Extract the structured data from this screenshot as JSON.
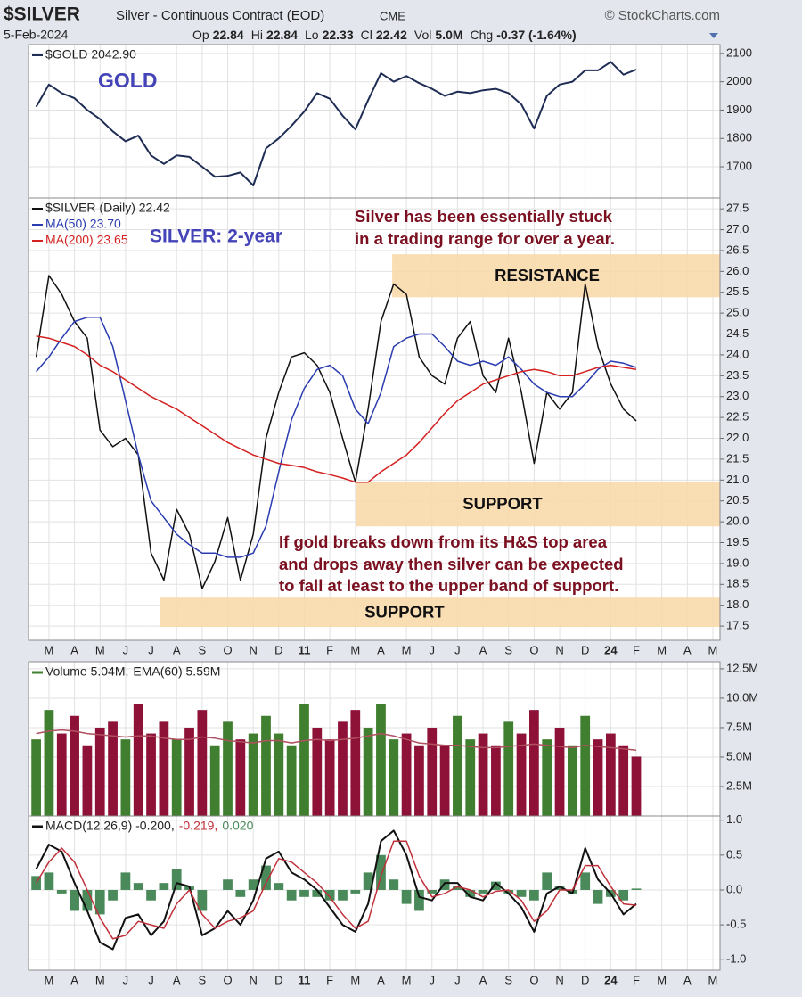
{
  "header": {
    "symbol": "$SILVER",
    "description": "Silver - Continuous Contract (EOD)",
    "exchange": "CME",
    "source": "© StockCharts.com",
    "date": "5-Feb-2024",
    "stats": [
      {
        "label": "Op",
        "value": "22.84"
      },
      {
        "label": "Hi",
        "value": "22.84"
      },
      {
        "label": "Lo",
        "value": "22.33"
      },
      {
        "label": "Cl",
        "value": "22.42"
      },
      {
        "label": "Vol",
        "value": "5.0M"
      },
      {
        "label": "Chg",
        "value": "-0.37 (-1.64%)"
      }
    ]
  },
  "chart_data": [
    {
      "type": "line",
      "annotations": [
        "GOLD"
      ],
      "xlim": [
        0.2,
        27.28
      ],
      "ylim": [
        1590,
        2131
      ],
      "yticks": [
        1700,
        1800,
        1900,
        2000,
        2100
      ],
      "grid": true,
      "x": [
        0.5,
        1,
        1.5,
        2,
        2.5,
        3,
        3.5,
        4,
        4.5,
        5,
        5.5,
        6,
        6.5,
        7,
        7.5,
        8,
        8.5,
        9,
        9.5,
        10,
        10.5,
        11,
        11.5,
        12,
        12.5,
        13,
        13.5,
        14,
        14.5,
        15,
        15.5,
        16,
        16.5,
        17,
        17.5,
        18,
        18.5,
        19,
        19.5,
        20,
        20.5,
        21,
        21.5,
        22,
        22.5,
        23,
        23.5,
        24
      ],
      "series": [
        {
          "name": "$GOLD 2042.90",
          "color": "#1f2d55",
          "values": [
            1911,
            1990,
            1960,
            1942,
            1900,
            1868,
            1825,
            1790,
            1810,
            1740,
            1710,
            1740,
            1735,
            1700,
            1665,
            1668,
            1680,
            1634,
            1765,
            1800,
            1845,
            1895,
            1960,
            1940,
            1880,
            1832,
            1935,
            2030,
            2000,
            2020,
            1995,
            1975,
            1950,
            1965,
            1960,
            1970,
            1975,
            1960,
            1920,
            1835,
            1950,
            1990,
            2000,
            2040,
            2040,
            2070,
            2025,
            2042.9
          ]
        }
      ]
    },
    {
      "type": "line",
      "annotations": [
        "SILVER: 2-year",
        "Silver has been essentially stuck",
        "in a trading range for over a year.",
        "If gold breaks down from its H&S top area",
        "and drops away then silver can be expected",
        "to fall at least to the upper band of support."
      ],
      "xlim": [
        0.2,
        27.28
      ],
      "ylim": [
        17.16,
        27.76
      ],
      "grid": true,
      "xticks": [
        {
          "value": 1,
          "label": "M"
        },
        {
          "value": 2,
          "label": "A"
        },
        {
          "value": 3,
          "label": "M"
        },
        {
          "value": 4,
          "label": "J"
        },
        {
          "value": 5,
          "label": "J"
        },
        {
          "value": 6,
          "label": "A"
        },
        {
          "value": 7,
          "label": "S"
        },
        {
          "value": 8,
          "label": "O"
        },
        {
          "value": 9,
          "label": "N"
        },
        {
          "value": 10,
          "label": "D"
        },
        11,
        {
          "value": 12,
          "label": "F"
        },
        {
          "value": 13,
          "label": "M"
        },
        {
          "value": 14,
          "label": "A"
        },
        {
          "value": 15,
          "label": "M"
        },
        {
          "value": 16,
          "label": "J"
        },
        {
          "value": 17,
          "label": "J"
        },
        {
          "value": 18,
          "label": "A"
        },
        {
          "value": 19,
          "label": "S"
        },
        {
          "value": 20,
          "label": "O"
        },
        {
          "value": 21,
          "label": "N"
        },
        {
          "value": 22,
          "label": "D"
        },
        {
          "value": 23,
          "label": "24"
        },
        {
          "value": 24,
          "label": "F"
        },
        {
          "value": 25,
          "label": "M"
        },
        {
          "value": 26,
          "label": "A"
        },
        {
          "value": 27,
          "label": "M"
        }
      ],
      "yticks": [
        17.5,
        {
          "value": 18,
          "label": "18.0"
        },
        18.5,
        {
          "value": 19,
          "label": "19.0"
        },
        19.5,
        {
          "value": 20,
          "label": "20.0"
        },
        20.5,
        {
          "value": 21,
          "label": "21.0"
        },
        21.5,
        {
          "value": 22,
          "label": "22.0"
        },
        22.5,
        {
          "value": 23,
          "label": "23.0"
        },
        23.5,
        {
          "value": 24,
          "label": "24.0"
        },
        24.5,
        {
          "value": 25,
          "label": "25.0"
        },
        25.5,
        {
          "value": 26,
          "label": "26.0"
        },
        26.5,
        {
          "value": 27,
          "label": "27.0"
        },
        27.5
      ],
      "zone_color": "#f8d9ab",
      "zones": [
        {
          "label": "RESISTANCE",
          "range": [
            25.38,
            26.41
          ],
          "from": 14.44
        },
        {
          "label": "SUPPORT",
          "range": [
            19.89,
            20.96
          ],
          "from": 13.04
        },
        {
          "label": "SUPPORT",
          "range": [
            17.48,
            18.18
          ],
          "from": 5.36
        }
      ],
      "x": [
        0.5,
        1,
        1.5,
        2,
        2.5,
        3,
        3.5,
        4,
        4.5,
        5,
        5.5,
        6,
        6.5,
        7,
        7.5,
        8,
        8.5,
        9,
        9.5,
        10,
        10.5,
        11,
        11.5,
        12,
        12.5,
        13,
        13.5,
        14,
        14.5,
        15,
        15.5,
        16,
        16.5,
        17,
        17.5,
        18,
        18.5,
        19,
        19.5,
        20,
        20.5,
        21,
        21.5,
        22,
        22.5,
        23,
        23.5,
        24
      ],
      "series": [
        {
          "name": "$SILVER (Daily) 22.42",
          "color": "#111111",
          "values": [
            23.95,
            25.9,
            25.45,
            24.8,
            24.4,
            22.2,
            21.8,
            22.0,
            21.6,
            19.25,
            18.6,
            20.3,
            19.7,
            18.4,
            19.05,
            20.1,
            18.6,
            19.7,
            22.0,
            23.1,
            23.95,
            24.05,
            23.75,
            23.1,
            22.0,
            20.95,
            22.7,
            24.8,
            25.7,
            25.45,
            23.95,
            23.5,
            23.3,
            24.4,
            24.8,
            23.5,
            23.1,
            24.4,
            23.1,
            21.4,
            23.1,
            22.7,
            23.1,
            25.7,
            24.2,
            23.3,
            22.7,
            22.42
          ]
        },
        {
          "name": "MA(50) 23.70",
          "color": "#2a3cb0",
          "values": [
            23.6,
            23.95,
            24.4,
            24.8,
            24.9,
            24.9,
            24.2,
            22.9,
            21.6,
            20.5,
            20.1,
            19.7,
            19.45,
            19.25,
            19.25,
            19.15,
            19.15,
            19.25,
            19.9,
            21.2,
            22.45,
            23.2,
            23.65,
            23.75,
            23.5,
            22.7,
            22.35,
            23.1,
            24.2,
            24.4,
            24.5,
            24.5,
            24.2,
            23.85,
            23.75,
            23.85,
            23.75,
            23.95,
            23.65,
            23.3,
            23.1,
            23.0,
            23.0,
            23.3,
            23.65,
            23.85,
            23.8,
            23.7
          ]
        },
        {
          "name": "MA(200) 23.65",
          "color": "#d42020",
          "values": [
            24.45,
            24.4,
            24.3,
            24.2,
            24.0,
            23.75,
            23.6,
            23.4,
            23.2,
            23.0,
            22.85,
            22.7,
            22.5,
            22.3,
            22.1,
            21.9,
            21.75,
            21.6,
            21.5,
            21.4,
            21.35,
            21.3,
            21.2,
            21.13,
            21.05,
            20.95,
            20.95,
            21.2,
            21.4,
            21.6,
            21.9,
            22.25,
            22.6,
            22.9,
            23.1,
            23.3,
            23.4,
            23.5,
            23.6,
            23.65,
            23.6,
            23.5,
            23.5,
            23.6,
            23.7,
            23.75,
            23.7,
            23.65
          ]
        }
      ]
    },
    {
      "type": "bar",
      "xlim": [
        0.2,
        27.28
      ],
      "ylim": [
        0,
        13.1
      ],
      "grid": true,
      "yticks": [
        {
          "value": 2.5,
          "label": "2.5M"
        },
        {
          "value": 5,
          "label": "5.0M"
        },
        {
          "value": 7.5,
          "label": "7.5M"
        },
        {
          "value": 10,
          "label": "10.0M"
        },
        {
          "value": 12.5,
          "label": "12.5M"
        }
      ],
      "x": [
        0.5,
        1,
        1.5,
        2,
        2.5,
        3,
        3.5,
        4,
        4.5,
        5,
        5.5,
        6,
        6.5,
        7,
        7.5,
        8,
        8.5,
        9,
        9.5,
        10,
        10.5,
        11,
        11.5,
        12,
        12.5,
        13,
        13.5,
        14,
        14.5,
        15,
        15.5,
        16,
        16.5,
        17,
        17.5,
        18,
        18.5,
        19,
        19.5,
        20,
        20.5,
        21,
        21.5,
        22,
        22.5,
        23,
        23.5,
        24
      ],
      "series": [
        {
          "name": "Volume 5.04M,",
          "type": "bar",
          "up_color": "#3f7f2f",
          "down_color": "#8e1238",
          "values": [
            6.5,
            9,
            7,
            8.5,
            6,
            7.5,
            8,
            6.5,
            9.5,
            7,
            8,
            6.5,
            7.5,
            9,
            6,
            8,
            6.5,
            7,
            8.5,
            7,
            6,
            9.5,
            7.5,
            6.5,
            8,
            9,
            7.5,
            9.5,
            6.5,
            7,
            6,
            7.5,
            6,
            8.5,
            6.5,
            7,
            6,
            8,
            7,
            9,
            6.5,
            7.5,
            6,
            8.5,
            6.5,
            7,
            6,
            5.04
          ]
        },
        {
          "name": "EMA(60) 5.59M",
          "type": "line",
          "color": "#b05060",
          "values": [
            7.0,
            7.2,
            7.3,
            7.2,
            7.0,
            6.9,
            6.8,
            6.7,
            6.8,
            6.8,
            6.6,
            6.5,
            6.5,
            6.7,
            6.6,
            6.4,
            6.3,
            6.2,
            6.4,
            6.4,
            6.2,
            6.4,
            6.5,
            6.4,
            6.5,
            6.6,
            6.8,
            7.0,
            6.8,
            6.5,
            6.2,
            6.1,
            6.0,
            6.0,
            5.9,
            5.8,
            5.8,
            5.9,
            6.0,
            6.1,
            6.0,
            5.9,
            5.8,
            6.0,
            5.9,
            5.8,
            5.7,
            5.59
          ]
        }
      ]
    },
    {
      "type": "line",
      "xlim": [
        0.2,
        27.28
      ],
      "ylim": [
        -1.15,
        1.06
      ],
      "grid": true,
      "xticks": [
        {
          "value": 1,
          "label": "M"
        },
        {
          "value": 2,
          "label": "A"
        },
        {
          "value": 3,
          "label": "M"
        },
        {
          "value": 4,
          "label": "J"
        },
        {
          "value": 5,
          "label": "J"
        },
        {
          "value": 6,
          "label": "A"
        },
        {
          "value": 7,
          "label": "S"
        },
        {
          "value": 8,
          "label": "O"
        },
        {
          "value": 9,
          "label": "N"
        },
        {
          "value": 10,
          "label": "D"
        },
        11,
        {
          "value": 12,
          "label": "F"
        },
        {
          "value": 13,
          "label": "M"
        },
        {
          "value": 14,
          "label": "A"
        },
        {
          "value": 15,
          "label": "M"
        },
        {
          "value": 16,
          "label": "J"
        },
        {
          "value": 17,
          "label": "J"
        },
        {
          "value": 18,
          "label": "A"
        },
        {
          "value": 19,
          "label": "S"
        },
        {
          "value": 20,
          "label": "O"
        },
        {
          "value": 21,
          "label": "N"
        },
        {
          "value": 22,
          "label": "D"
        },
        {
          "value": 23,
          "label": "24"
        },
        {
          "value": 24,
          "label": "F"
        },
        {
          "value": 25,
          "label": "M"
        },
        {
          "value": 26,
          "label": "A"
        },
        {
          "value": 27,
          "label": "M"
        }
      ],
      "yticks": [
        {
          "value": -1,
          "label": "-1.0"
        },
        -0.5,
        {
          "value": 0,
          "label": "0.0"
        },
        0.5,
        {
          "value": 1,
          "label": "1.0"
        }
      ],
      "x": [
        0.5,
        1,
        1.5,
        2,
        2.5,
        3,
        3.5,
        4,
        4.5,
        5,
        5.5,
        6,
        6.5,
        7,
        7.5,
        8,
        8.5,
        9,
        9.5,
        10,
        10.5,
        11,
        11.5,
        12,
        12.5,
        13,
        13.5,
        14,
        14.5,
        15,
        15.5,
        16,
        16.5,
        17,
        17.5,
        18,
        18.5,
        19,
        19.5,
        20,
        20.5,
        21,
        21.5,
        22,
        22.5,
        23,
        23.5,
        24
      ],
      "series": [
        {
          "name": "MACD(12,26,9) -0.200,",
          "type": "line",
          "color": "#111111",
          "values": [
            0.3,
            0.65,
            0.55,
            0.1,
            -0.3,
            -0.75,
            -0.85,
            -0.4,
            -0.35,
            -0.65,
            -0.45,
            0.1,
            0.05,
            -0.65,
            -0.55,
            -0.3,
            -0.5,
            -0.15,
            0.45,
            0.55,
            0.25,
            0.15,
            0.0,
            -0.25,
            -0.5,
            -0.6,
            -0.2,
            0.7,
            0.85,
            0.5,
            -0.1,
            -0.15,
            0.1,
            0.1,
            -0.1,
            -0.15,
            0.1,
            -0.05,
            -0.25,
            -0.6,
            -0.05,
            0.05,
            -0.05,
            0.6,
            0.15,
            -0.05,
            -0.35,
            -0.2
          ]
        },
        {
          "name": "-0.219,",
          "type": "line",
          "color": "#c0303a",
          "values": [
            0.1,
            0.4,
            0.6,
            0.4,
            0.0,
            -0.4,
            -0.7,
            -0.65,
            -0.45,
            -0.5,
            -0.55,
            -0.2,
            0.0,
            -0.35,
            -0.55,
            -0.45,
            -0.4,
            -0.3,
            0.1,
            0.45,
            0.4,
            0.25,
            0.1,
            -0.1,
            -0.35,
            -0.55,
            -0.45,
            0.2,
            0.7,
            0.7,
            0.2,
            -0.1,
            -0.05,
            0.05,
            0.0,
            -0.1,
            -0.02,
            0.0,
            -0.15,
            -0.45,
            -0.3,
            0.0,
            0.0,
            0.35,
            0.35,
            0.05,
            -0.2,
            -0.219
          ]
        },
        {
          "name": "0.020",
          "type": "bar",
          "color": "#4a8a5a",
          "values": [
            0.2,
            0.25,
            -0.05,
            -0.3,
            -0.3,
            -0.35,
            -0.15,
            0.25,
            0.1,
            -0.15,
            0.1,
            0.3,
            0.05,
            -0.3,
            0.0,
            0.15,
            -0.1,
            0.15,
            0.35,
            0.1,
            -0.15,
            -0.1,
            -0.1,
            -0.15,
            -0.15,
            -0.05,
            0.25,
            0.5,
            0.15,
            -0.2,
            -0.3,
            -0.05,
            0.15,
            0.05,
            -0.1,
            -0.05,
            0.12,
            -0.05,
            -0.1,
            -0.15,
            0.25,
            0.05,
            -0.05,
            0.25,
            -0.2,
            -0.1,
            -0.15,
            0.02
          ]
        }
      ]
    }
  ]
}
